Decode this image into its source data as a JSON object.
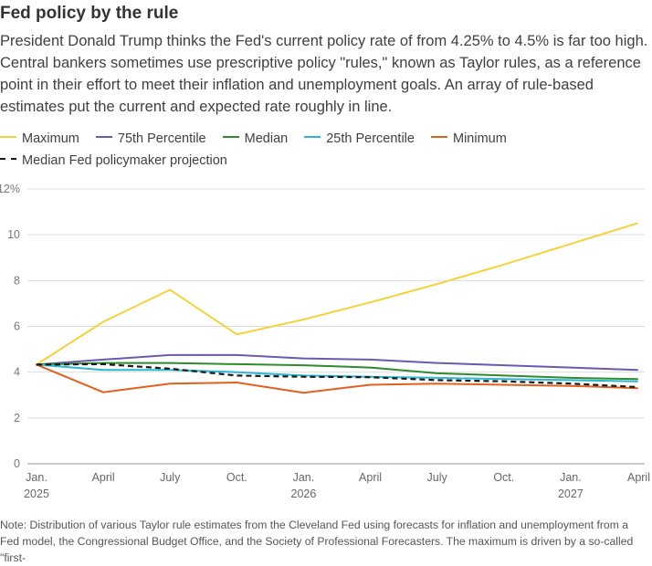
{
  "title": "Fed policy by the rule",
  "subtitle": "President Donald Trump thinks the Fed's current policy rate of from 4.25% to 4.5% is far too high. Central bankers sometimes use prescriptive policy \"rules,\" known as Taylor rules, as a reference point in their effort to meet their inflation and unemployment goals. An array of rule-based estimates put the current and expected rate roughly in line.",
  "note": "Note: Distribution of various Taylor rule estimates from the Cleveland Fed using forecasts for inflation and unemployment from a Fed model, the Congressional Budget Office, and the Society of Professional Forecasters. The maximum is driven by a so-called \"first-",
  "chart_data": {
    "type": "line",
    "title": "Fed policy by the rule",
    "xlabel": "",
    "ylabel": "",
    "ylim": [
      0,
      12
    ],
    "yticks": [
      0,
      2,
      4,
      6,
      8,
      10,
      12
    ],
    "ytick_labels": [
      "0",
      "2",
      "4",
      "6",
      "8",
      "10",
      "12%"
    ],
    "grid": true,
    "x": [
      "Jan. 2025",
      "April 2025",
      "July 2025",
      "Oct. 2025",
      "Jan. 2026",
      "April 2026",
      "July 2026",
      "Oct. 2026",
      "Jan. 2027",
      "April 2027"
    ],
    "xticks": [
      {
        "line1": "Jan.",
        "line2": "2025"
      },
      {
        "line1": "April",
        "line2": ""
      },
      {
        "line1": "July",
        "line2": ""
      },
      {
        "line1": "Oct.",
        "line2": ""
      },
      {
        "line1": "Jan.",
        "line2": "2026"
      },
      {
        "line1": "April",
        "line2": ""
      },
      {
        "line1": "July",
        "line2": ""
      },
      {
        "line1": "Oct.",
        "line2": ""
      },
      {
        "line1": "Jan.",
        "line2": "2027"
      },
      {
        "line1": "April",
        "line2": ""
      }
    ],
    "legend_position": "top",
    "series": [
      {
        "name": "Maximum",
        "color": "#f5d13d",
        "dashed": false,
        "values": [
          4.33,
          6.2,
          7.6,
          5.65,
          6.3,
          7.05,
          7.85,
          8.7,
          9.6,
          10.5
        ]
      },
      {
        "name": "75th Percentile",
        "color": "#6a5aaf",
        "dashed": false,
        "values": [
          4.33,
          4.55,
          4.75,
          4.75,
          4.6,
          4.55,
          4.4,
          4.3,
          4.2,
          4.1
        ]
      },
      {
        "name": "Median",
        "color": "#2e8b2e",
        "dashed": false,
        "values": [
          4.33,
          4.4,
          4.4,
          4.35,
          4.3,
          4.2,
          3.95,
          3.85,
          3.75,
          3.7
        ]
      },
      {
        "name": "25th Percentile",
        "color": "#2bb5d6",
        "dashed": false,
        "values": [
          4.33,
          4.1,
          4.1,
          4.0,
          3.85,
          3.8,
          3.75,
          3.7,
          3.65,
          3.6
        ]
      },
      {
        "name": "Minimum",
        "color": "#e06020",
        "dashed": false,
        "values": [
          4.33,
          3.12,
          3.5,
          3.55,
          3.1,
          3.45,
          3.5,
          3.45,
          3.4,
          3.3
        ]
      },
      {
        "name": "Median Fed policymaker projection",
        "color": "#1a1a1a",
        "dashed": true,
        "values": [
          4.33,
          4.35,
          4.15,
          3.85,
          3.8,
          3.78,
          3.65,
          3.6,
          3.5,
          3.35
        ]
      }
    ]
  }
}
